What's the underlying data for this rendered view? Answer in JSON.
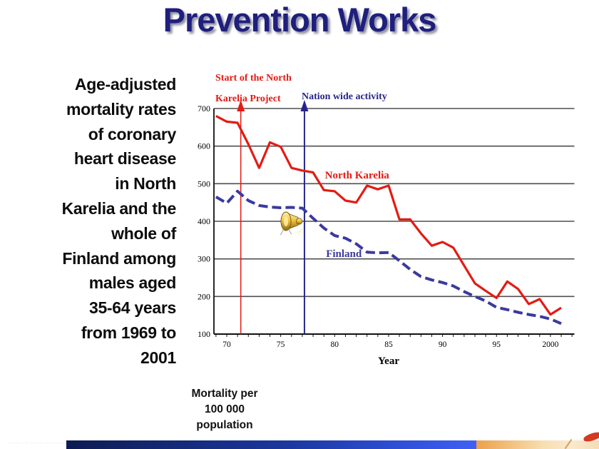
{
  "title": {
    "text": "Prevention Works"
  },
  "description": "Age-adjusted\nmortality rates\nof coronary\nheart disease\nin North\nKarelia and the\nwhole of\nFinland among\nmales aged\n35-64 years\nfrom 1969 to\n2001",
  "y_axis_caption": "Mortality per\n100 000\npopulation",
  "footer": {
    "fine_print": "·· ····· ·· ······· ···· ·····"
  },
  "colors": {
    "title_navy": "#1f1f7d",
    "north_karelia_red": "#e31b14",
    "finland_blue": "#3a3a9e",
    "annotation_navy": "#26268a",
    "grid_gray": "#4f4f4f"
  },
  "chart_data": {
    "type": "line",
    "title": "",
    "xlabel": "Year",
    "ylabel": "Mortality per 100 000 population",
    "grid": true,
    "legend_position": "inline-labels",
    "xlim": [
      1969,
      2002.3
    ],
    "ylim": [
      100,
      700
    ],
    "x_ticks": [
      1970,
      1975,
      1980,
      1985,
      1990,
      1995,
      2000
    ],
    "x_tick_labels": [
      "70",
      "75",
      "80",
      "85",
      "90",
      "95",
      "2000"
    ],
    "y_ticks": [
      100,
      200,
      300,
      400,
      500,
      600,
      700
    ],
    "years": [
      1969,
      1970,
      1971,
      1972,
      1973,
      1974,
      1975,
      1976,
      1977,
      1978,
      1979,
      1980,
      1981,
      1982,
      1983,
      1984,
      1985,
      1986,
      1987,
      1988,
      1989,
      1990,
      1991,
      1992,
      1993,
      1994,
      1995,
      1996,
      1997,
      1998,
      1999,
      2000,
      2001
    ],
    "series": [
      {
        "name": "North Karelia",
        "color": "#e31b14",
        "style": "solid",
        "values": [
          680,
          665,
          662,
          605,
          542,
          610,
          598,
          542,
          535,
          530,
          483,
          480,
          455,
          450,
          495,
          485,
          495,
          405,
          405,
          368,
          335,
          345,
          330,
          282,
          235,
          215,
          196,
          240,
          220,
          180,
          193,
          152,
          170
        ]
      },
      {
        "name": "Finland",
        "color": "#3a3a9e",
        "style": "dashed",
        "values": [
          465,
          448,
          480,
          455,
          442,
          438,
          436,
          437,
          435,
          408,
          382,
          362,
          355,
          340,
          318,
          316,
          317,
          295,
          272,
          253,
          244,
          237,
          228,
          213,
          200,
          188,
          171,
          165,
          158,
          152,
          147,
          140,
          128
        ]
      }
    ],
    "annotations": [
      {
        "text": "Start of the North\nKarelia Project",
        "color": "#e31b14",
        "marker_year": 1971.3
      },
      {
        "text": "Nation wide activity",
        "color": "#26268a",
        "marker_year": 1977.2
      }
    ],
    "series_labels": [
      {
        "text": "North Karelia",
        "color": "#e31b14",
        "year": 1979.1,
        "value": 514
      },
      {
        "text": "Finland",
        "color": "#3a3a9e",
        "year": 1979.2,
        "value": 305
      }
    ]
  }
}
